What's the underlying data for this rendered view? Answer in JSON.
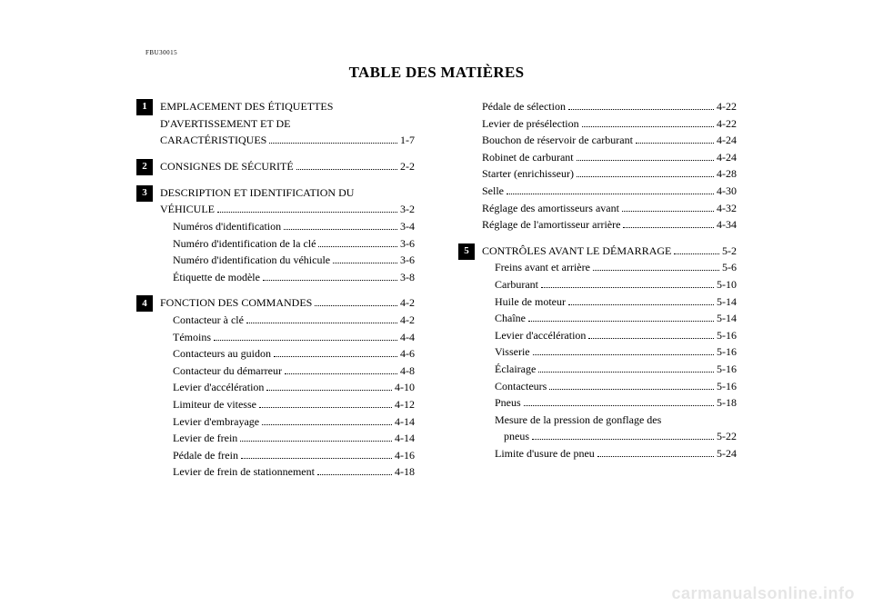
{
  "doc_code": "FBU30015",
  "title": "TABLE DES MATIÈRES",
  "watermark": "carmanualsonline.info",
  "left": {
    "sections": [
      {
        "num": "1",
        "heading_lines": [
          "EMPLACEMENT DES ÉTIQUETTES",
          "D'AVERTISSEMENT ET DE"
        ],
        "last_line_label": "CARACTÉRISTIQUES",
        "last_line_page": "1-7",
        "subs": []
      },
      {
        "num": "2",
        "heading_lines": [],
        "last_line_label": "CONSIGNES DE SÉCURITÉ",
        "last_line_page": "2-2",
        "subs": []
      },
      {
        "num": "3",
        "heading_lines": [
          "DESCRIPTION ET IDENTIFICATION DU"
        ],
        "last_line_label": "VÉHICULE",
        "last_line_page": "3-2",
        "subs": [
          {
            "label": "Numéros d'identification",
            "page": "3-4"
          },
          {
            "label": "Numéro d'identification de la clé",
            "page": "3-6"
          },
          {
            "label": "Numéro d'identification du véhicule",
            "page": "3-6"
          },
          {
            "label": "Étiquette de modèle",
            "page": "3-8"
          }
        ]
      },
      {
        "num": "4",
        "heading_lines": [],
        "last_line_label": "FONCTION DES COMMANDES",
        "last_line_page": "4-2",
        "subs": [
          {
            "label": "Contacteur à clé",
            "page": "4-2"
          },
          {
            "label": "Témoins",
            "page": "4-4"
          },
          {
            "label": "Contacteurs au guidon",
            "page": "4-6"
          },
          {
            "label": "Contacteur du démarreur",
            "page": "4-8"
          },
          {
            "label": "Levier d'accélération",
            "page": "4-10"
          },
          {
            "label": "Limiteur de vitesse",
            "page": "4-12"
          },
          {
            "label": "Levier d'embrayage",
            "page": "4-14"
          },
          {
            "label": "Levier de frein",
            "page": "4-14"
          },
          {
            "label": "Pédale de frein",
            "page": "4-16"
          },
          {
            "label": "Levier de frein de stationnement",
            "page": "4-18"
          }
        ]
      }
    ]
  },
  "right_top": {
    "subs": [
      {
        "label": "Pédale de sélection",
        "page": "4-22"
      },
      {
        "label": "Levier de présélection",
        "page": "4-22"
      },
      {
        "label": "Bouchon de réservoir de carburant",
        "page": "4-24"
      },
      {
        "label": "Robinet de carburant",
        "page": "4-24"
      },
      {
        "label": "Starter (enrichisseur)",
        "page": "4-28"
      },
      {
        "label": "Selle",
        "page": "4-30"
      },
      {
        "label": "Réglage des amortisseurs avant",
        "page": "4-32"
      },
      {
        "label": "Réglage de l'amortisseur arrière",
        "page": "4-34"
      }
    ]
  },
  "right_section5": {
    "num": "5",
    "last_line_label": "CONTRÔLES AVANT LE DÉMARRAGE",
    "last_line_page": "5-2",
    "subs": [
      {
        "label": "Freins avant et arrière",
        "page": "5-6"
      },
      {
        "label": "Carburant",
        "page": "5-10"
      },
      {
        "label": "Huile de moteur",
        "page": "5-14"
      },
      {
        "label": "Chaîne",
        "page": "5-14"
      },
      {
        "label": "Levier d'accélération",
        "page": "5-16"
      },
      {
        "label": "Visserie",
        "page": "5-16"
      },
      {
        "label": "Éclairage",
        "page": "5-16"
      },
      {
        "label": "Contacteurs",
        "page": "5-16"
      },
      {
        "label": "Pneus",
        "page": "5-18"
      }
    ],
    "wrap_entry": {
      "line1": "Mesure de la pression de gonflage des",
      "line2_label": "pneus",
      "line2_page": "5-22"
    },
    "tail_subs": [
      {
        "label": "Limite d'usure de pneu",
        "page": "5-24"
      }
    ]
  }
}
